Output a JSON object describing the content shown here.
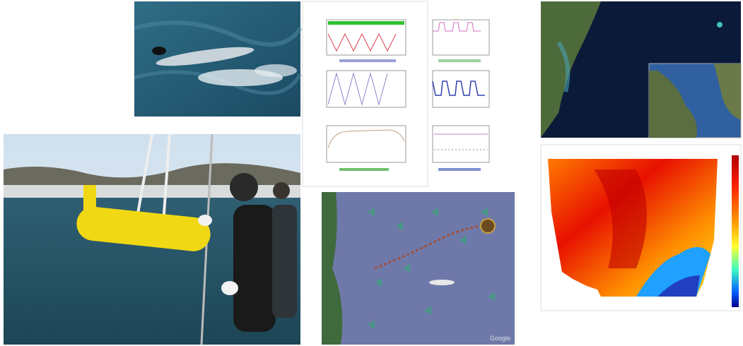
{
  "map": {
    "watermark": "Google"
  }
}
